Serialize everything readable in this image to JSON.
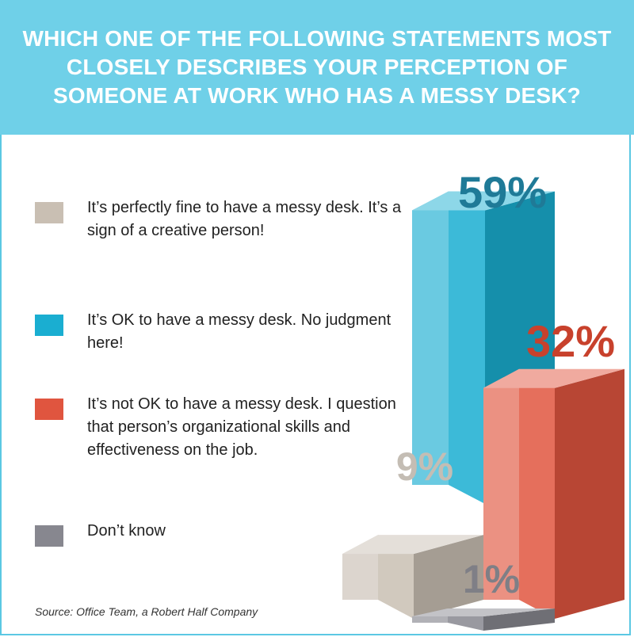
{
  "title": "WHICH ONE OF THE FOLLOWING STATEMENTS MOST CLOSELY DESCRIBES YOUR PERCEPTION OF SOMEONE AT WORK WHO HAS A MESSY DESK?",
  "legend": [
    {
      "label": "It’s perfectly fine to have a messy desk. It’s a sign of a creative person!",
      "color": "#c9bfb3"
    },
    {
      "label": "It’s OK to have a messy desk. No judgment here!",
      "color": "#1aaed1"
    },
    {
      "label": "It’s not OK to have a messy desk. I question that person’s organizational skills and effectiveness on the job.",
      "color": "#e0553f"
    },
    {
      "label": "Don’t know",
      "color": "#87878f"
    }
  ],
  "source": "Source: Office Team, a Robert Half Company",
  "chart_data": {
    "type": "bar",
    "categories": [
      "It’s perfectly fine to have a messy desk. It’s a sign of a creative person!",
      "It’s OK to have a messy desk. No judgment here!",
      "It’s not OK to have a messy desk. I question that person’s organizational skills and effectiveness on the job.",
      "Don’t know"
    ],
    "values": [
      9,
      59,
      32,
      1
    ],
    "data_labels": [
      "9%",
      "59%",
      "32%",
      "1%"
    ],
    "colors": [
      "#c9bfb3",
      "#1aaed1",
      "#e0553f",
      "#87878f"
    ],
    "label_colors": [
      "#c4bdb4",
      "#1f7a97",
      "#c8412c",
      "#7f7f86"
    ],
    "style": "3d-isometric",
    "grid": false
  }
}
